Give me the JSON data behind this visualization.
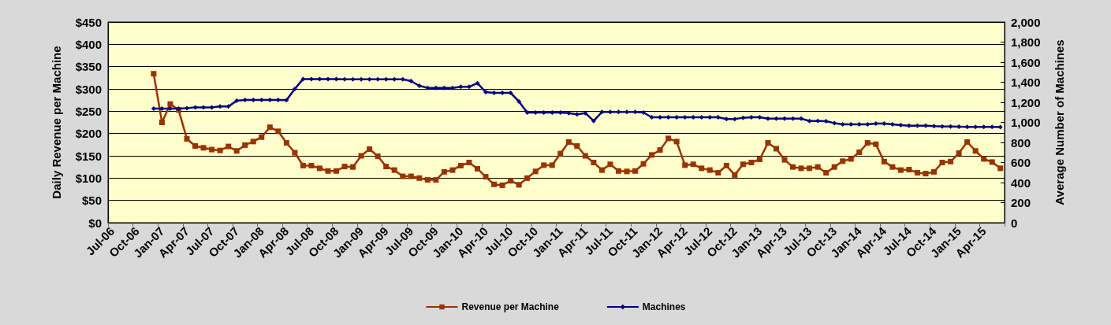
{
  "chart_data": {
    "type": "line",
    "ylabel": "Daily Revenue per Machine",
    "y2label": "Average Number of Machines",
    "categories": [
      "Jul-06",
      null,
      null,
      "Oct-06",
      null,
      null,
      "Jan-07",
      null,
      null,
      "Apr-07",
      null,
      null,
      "Jul-07",
      null,
      null,
      "Oct-07",
      null,
      null,
      "Jan-08",
      null,
      null,
      "Apr-08",
      null,
      null,
      "Jul-08",
      null,
      null,
      "Oct-08",
      null,
      null,
      "Jan-09",
      null,
      null,
      "Apr-09",
      null,
      null,
      "Jul-09",
      null,
      null,
      "Oct-09",
      null,
      null,
      "Jan-10",
      null,
      null,
      "Apr-10",
      null,
      null,
      "Jul-10",
      null,
      null,
      "Oct-10",
      null,
      null,
      "Jan-11",
      null,
      null,
      "Apr-11",
      null,
      null,
      "Jul-11",
      null,
      null,
      "Oct-11",
      null,
      null,
      "Jan-12",
      null,
      null,
      "Apr-12",
      null,
      null,
      "Jul-12",
      null,
      null,
      "Oct-12",
      null,
      null,
      "Jan-13",
      null,
      null,
      "Apr-13",
      null,
      null,
      "Jul-13",
      null,
      null,
      "Oct-13",
      null,
      null,
      "Jan-14",
      null,
      null,
      "Apr-14",
      null,
      null,
      "Jul-14",
      null,
      null,
      "Oct-14",
      null,
      null,
      "Jan-15",
      null,
      null,
      "Apr-15",
      null,
      null
    ],
    "series": [
      {
        "name": "Revenue per Machine",
        "color": "#993300",
        "marker": "square",
        "values": [
          null,
          null,
          null,
          null,
          null,
          334,
          225,
          266,
          253,
          188,
          172,
          168,
          164,
          162,
          171,
          161,
          174,
          182,
          192,
          214,
          205,
          179,
          157,
          128,
          128,
          122,
          116,
          116,
          126,
          125,
          150,
          165,
          149,
          126,
          118,
          104,
          104,
          100,
          96,
          96,
          114,
          118,
          128,
          135,
          121,
          103,
          86,
          84,
          94,
          85,
          100,
          115,
          129,
          129,
          155,
          181,
          172,
          150,
          135,
          118,
          131,
          116,
          115,
          116,
          132,
          152,
          163,
          189,
          182,
          129,
          131,
          122,
          118,
          112,
          128,
          107,
          131,
          135,
          142,
          179,
          166,
          141,
          125,
          122,
          122,
          125,
          112,
          125,
          138,
          143,
          158,
          179,
          176,
          137,
          125,
          118,
          119,
          112,
          110,
          114,
          135,
          137,
          156,
          181,
          161,
          143,
          136,
          122
        ]
      },
      {
        "name": "Machines",
        "color": "#000080",
        "marker": "diamond",
        "axis": "y2",
        "values": [
          null,
          null,
          null,
          null,
          null,
          1137,
          1137,
          1137,
          1137,
          1142,
          1150,
          1150,
          1150,
          1158,
          1158,
          1216,
          1223,
          1223,
          1223,
          1223,
          1223,
          1221,
          1333,
          1432,
          1432,
          1432,
          1432,
          1432,
          1430,
          1430,
          1430,
          1430,
          1430,
          1430,
          1430,
          1430,
          1412,
          1365,
          1344,
          1344,
          1344,
          1344,
          1354,
          1354,
          1391,
          1302,
          1294,
          1294,
          1294,
          1208,
          1098,
          1098,
          1098,
          1098,
          1098,
          1093,
          1080,
          1093,
          1014,
          1103,
          1103,
          1103,
          1103,
          1103,
          1098,
          1051,
          1051,
          1051,
          1051,
          1051,
          1051,
          1051,
          1051,
          1051,
          1033,
          1033,
          1046,
          1051,
          1051,
          1038,
          1038,
          1038,
          1038,
          1038,
          1014,
          1014,
          1012,
          993,
          980,
          980,
          980,
          980,
          988,
          988,
          980,
          972,
          967,
          967,
          967,
          962,
          959,
          959,
          957,
          954,
          954,
          954,
          954,
          952
        ]
      }
    ],
    "ylim": [
      0,
      450
    ],
    "yticks": [
      {
        "value": 0,
        "label": "$0"
      },
      {
        "value": 50,
        "label": "$50"
      },
      {
        "value": 100,
        "label": "$100"
      },
      {
        "value": 150,
        "label": "$150"
      },
      {
        "value": 200,
        "label": "$200"
      },
      {
        "value": 250,
        "label": "$250"
      },
      {
        "value": 300,
        "label": "$300"
      },
      {
        "value": 350,
        "label": "$350"
      },
      {
        "value": 400,
        "label": "$400"
      },
      {
        "value": 450,
        "label": "$450"
      }
    ],
    "y2lim": [
      0,
      2000
    ],
    "y2ticks": [
      0,
      200,
      400,
      600,
      800,
      {
        "value": 1000,
        "label": "1,000"
      },
      {
        "value": 1200,
        "label": "1,200"
      },
      {
        "value": 1400,
        "label": "1,400"
      },
      {
        "value": 1600,
        "label": "1,600"
      },
      {
        "value": 1800,
        "label": "1,800"
      },
      {
        "value": 2000,
        "label": "2,000"
      }
    ],
    "grid": "y",
    "legend": "bottom",
    "line_style": "solid"
  }
}
